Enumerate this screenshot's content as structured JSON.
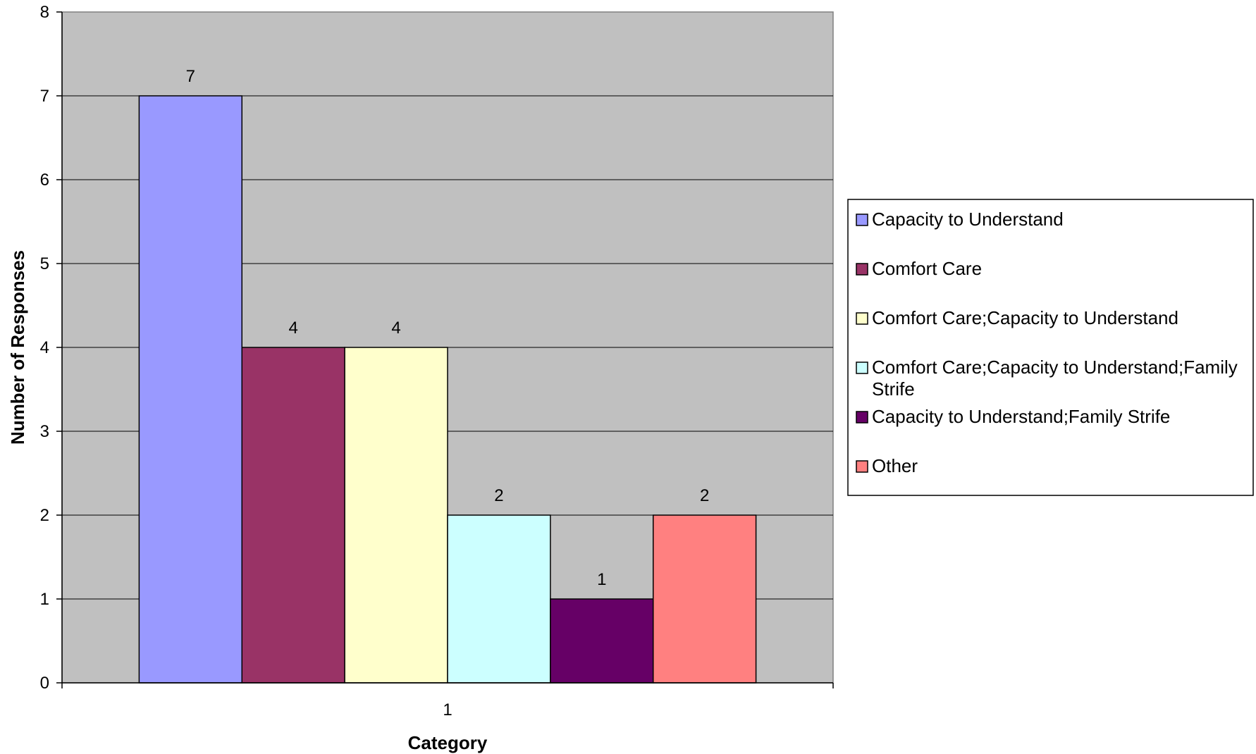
{
  "chart_data": {
    "type": "bar",
    "title": "",
    "xlabel": "Category",
    "ylabel": "Number of Responses",
    "categories": [
      "1"
    ],
    "ylim": [
      0,
      8
    ],
    "yticks": [
      0,
      1,
      2,
      3,
      4,
      5,
      6,
      7,
      8
    ],
    "grid": true,
    "legend_position": "right",
    "plot_background": "#c0c0c0",
    "series": [
      {
        "name": "Capacity to Understand",
        "values": [
          7
        ],
        "color": "#9999ff"
      },
      {
        "name": "Comfort Care",
        "values": [
          4
        ],
        "color": "#993366"
      },
      {
        "name": "Comfort Care;Capacity to Understand",
        "values": [
          4
        ],
        "color": "#ffffcc"
      },
      {
        "name": "Comfort Care;Capacity to Understand;Family Strife",
        "values": [
          2
        ],
        "color": "#ccffff"
      },
      {
        "name": "Capacity to Understand;Family Strife",
        "values": [
          1
        ],
        "color": "#660066"
      },
      {
        "name": "Other",
        "values": [
          2
        ],
        "color": "#ff8080"
      }
    ]
  }
}
